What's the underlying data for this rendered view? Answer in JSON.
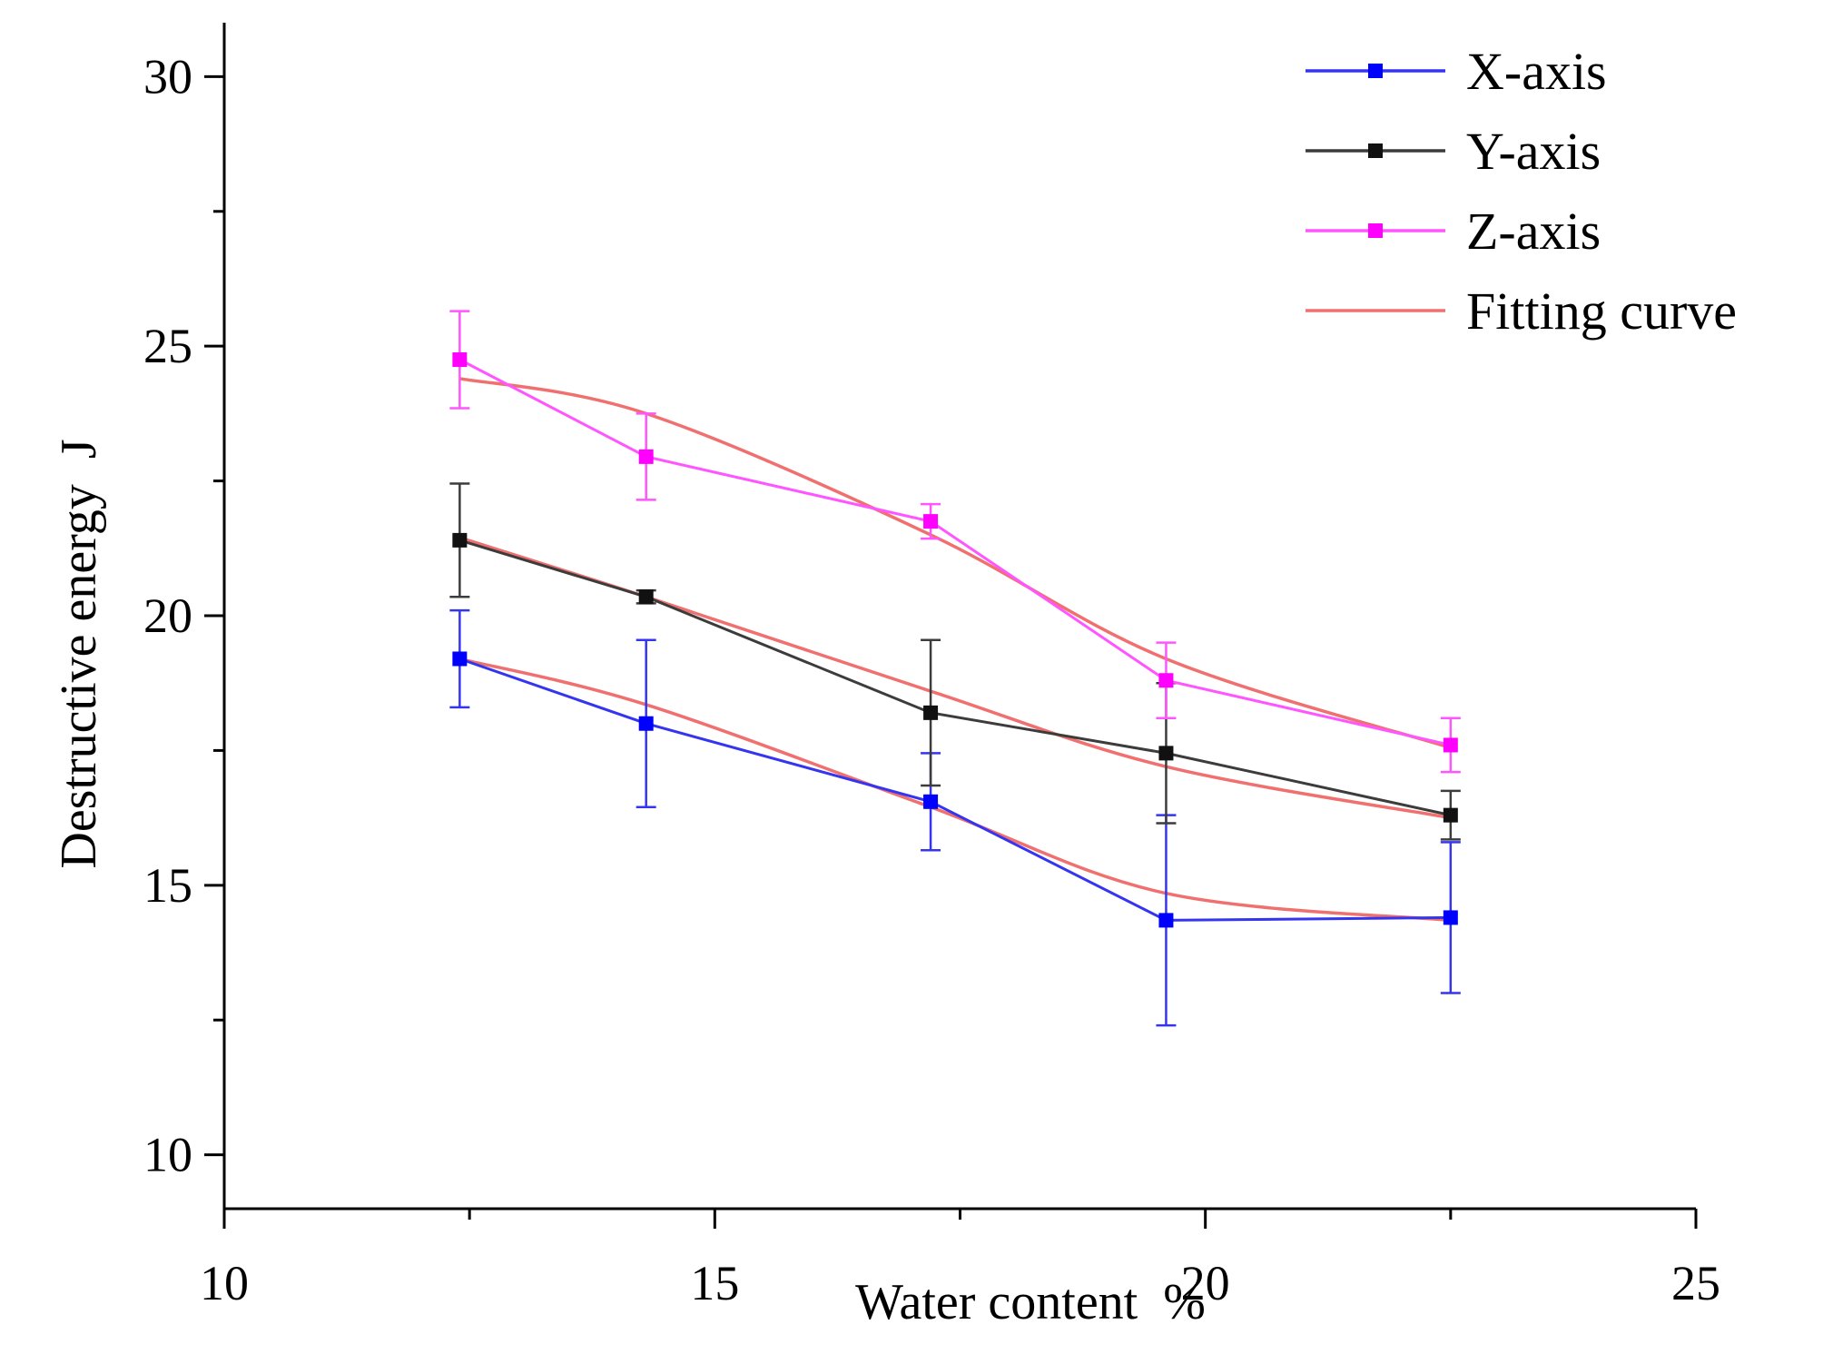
{
  "chart_data": {
    "type": "line",
    "title": "",
    "xlabel": "Water content  %",
    "ylabel": "Destructive energy  J",
    "xlim": [
      10,
      25
    ],
    "ylim": [
      9,
      31
    ],
    "xticks": [
      10,
      15,
      20,
      25
    ],
    "xtick_labels": [
      "10",
      "15",
      "20",
      "25"
    ],
    "yticks": [
      10,
      15,
      20,
      25,
      30
    ],
    "ytick_labels": [
      "10",
      "15",
      "20",
      "25",
      "30"
    ],
    "grid": false,
    "legend_position": "top-right",
    "series": [
      {
        "name": "X-axis",
        "color": "#3535f0",
        "marker_color": "#0000ff",
        "x": [
          12.4,
          14.3,
          17.2,
          19.6,
          22.5
        ],
        "y": [
          19.2,
          18.0,
          16.55,
          14.35,
          14.4
        ],
        "err": [
          0.9,
          1.55,
          0.9,
          1.95,
          1.4
        ]
      },
      {
        "name": "Y-axis",
        "color": "#3c3c3c",
        "marker_color": "#111111",
        "x": [
          12.4,
          14.3,
          17.2,
          19.6,
          22.5
        ],
        "y": [
          21.4,
          20.35,
          18.2,
          17.45,
          16.3
        ],
        "err": [
          1.05,
          0.12,
          1.35,
          1.3,
          0.45
        ]
      },
      {
        "name": "Z-axis",
        "color": "#ff55ff",
        "marker_color": "#ff00ff",
        "x": [
          12.4,
          14.3,
          17.2,
          19.6,
          22.5
        ],
        "y": [
          24.75,
          22.95,
          21.75,
          18.8,
          17.6
        ],
        "err": [
          0.9,
          0.8,
          0.32,
          0.7,
          0.5
        ]
      }
    ],
    "fitting_curve": {
      "name": "Fitting curve",
      "color": "#f07070",
      "curves": [
        {
          "x": [
            12.4,
            14.3,
            17.2,
            19.6,
            22.5
          ],
          "y": [
            24.4,
            23.75,
            21.5,
            19.2,
            17.55
          ]
        },
        {
          "x": [
            12.4,
            14.3,
            17.2,
            19.6,
            22.5
          ],
          "y": [
            21.45,
            20.35,
            18.6,
            17.2,
            16.25
          ]
        },
        {
          "x": [
            12.4,
            14.3,
            17.2,
            19.6,
            22.5
          ],
          "y": [
            19.2,
            18.35,
            16.45,
            14.85,
            14.35
          ]
        }
      ]
    }
  }
}
